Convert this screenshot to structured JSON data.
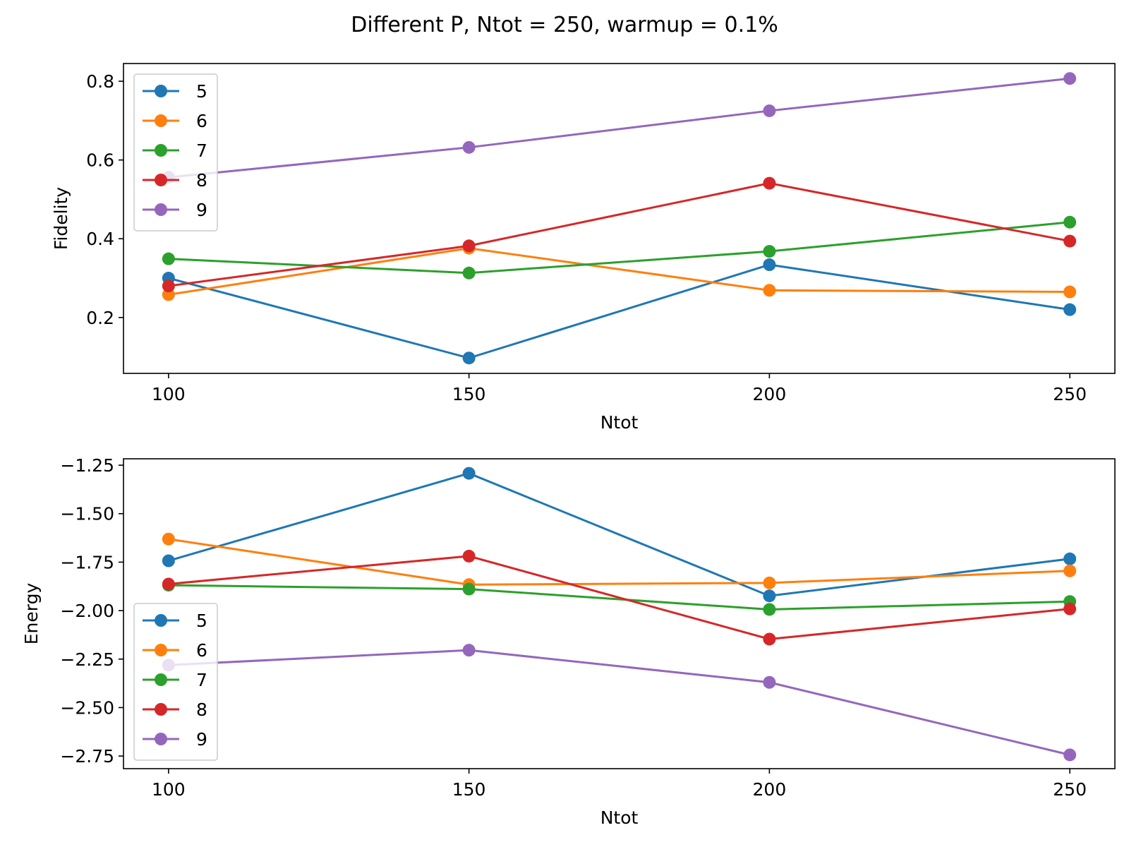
{
  "figure": {
    "title": "Different P, Ntot = 250, warmup = 0.1%"
  },
  "chart_data": [
    {
      "type": "line",
      "title": "",
      "xlabel": "Ntot",
      "ylabel": "Fidelity",
      "x": [
        100,
        150,
        200,
        250
      ],
      "xticks": [
        100,
        150,
        200,
        250
      ],
      "xlim": [
        92.5,
        257.5
      ],
      "yticks": [
        0.2,
        0.4,
        0.6,
        0.8
      ],
      "ytick_labels": [
        "0.2",
        "0.4",
        "0.6",
        "0.8"
      ],
      "ylim": [
        0.058,
        0.845
      ],
      "grid": false,
      "legend": "upper-left",
      "series": [
        {
          "name": "5",
          "color": "#1f77b4",
          "values": [
            0.3,
            0.097,
            0.334,
            0.22
          ]
        },
        {
          "name": "6",
          "color": "#ff7f0e",
          "values": [
            0.258,
            0.376,
            0.269,
            0.265
          ]
        },
        {
          "name": "7",
          "color": "#2ca02c",
          "values": [
            0.349,
            0.313,
            0.368,
            0.442
          ]
        },
        {
          "name": "8",
          "color": "#d62728",
          "values": [
            0.28,
            0.382,
            0.541,
            0.394
          ]
        },
        {
          "name": "9",
          "color": "#9467bd",
          "values": [
            0.556,
            0.632,
            0.725,
            0.807
          ]
        }
      ]
    },
    {
      "type": "line",
      "title": "",
      "xlabel": "Ntot",
      "ylabel": "Energy",
      "x": [
        100,
        150,
        200,
        250
      ],
      "xticks": [
        100,
        150,
        200,
        250
      ],
      "xlim": [
        92.5,
        257.5
      ],
      "yticks": [
        -1.25,
        -1.5,
        -1.75,
        -2.0,
        -2.25,
        -2.5,
        -2.75
      ],
      "ytick_labels": [
        "−1.25",
        "−1.50",
        "−1.75",
        "−2.00",
        "−2.25",
        "−2.50",
        "−2.75"
      ],
      "ylim": [
        -2.815,
        -1.217
      ],
      "grid": false,
      "legend": "lower-left",
      "series": [
        {
          "name": "5",
          "color": "#1f77b4",
          "values": [
            -1.743,
            -1.292,
            -1.924,
            -1.733
          ]
        },
        {
          "name": "6",
          "color": "#ff7f0e",
          "values": [
            -1.631,
            -1.866,
            -1.857,
            -1.795
          ]
        },
        {
          "name": "7",
          "color": "#2ca02c",
          "values": [
            -1.869,
            -1.889,
            -1.994,
            -1.953
          ]
        },
        {
          "name": "8",
          "color": "#d62728",
          "values": [
            -1.863,
            -1.719,
            -2.147,
            -1.991
          ]
        },
        {
          "name": "9",
          "color": "#9467bd",
          "values": [
            -2.281,
            -2.204,
            -2.37,
            -2.744
          ]
        }
      ]
    }
  ]
}
